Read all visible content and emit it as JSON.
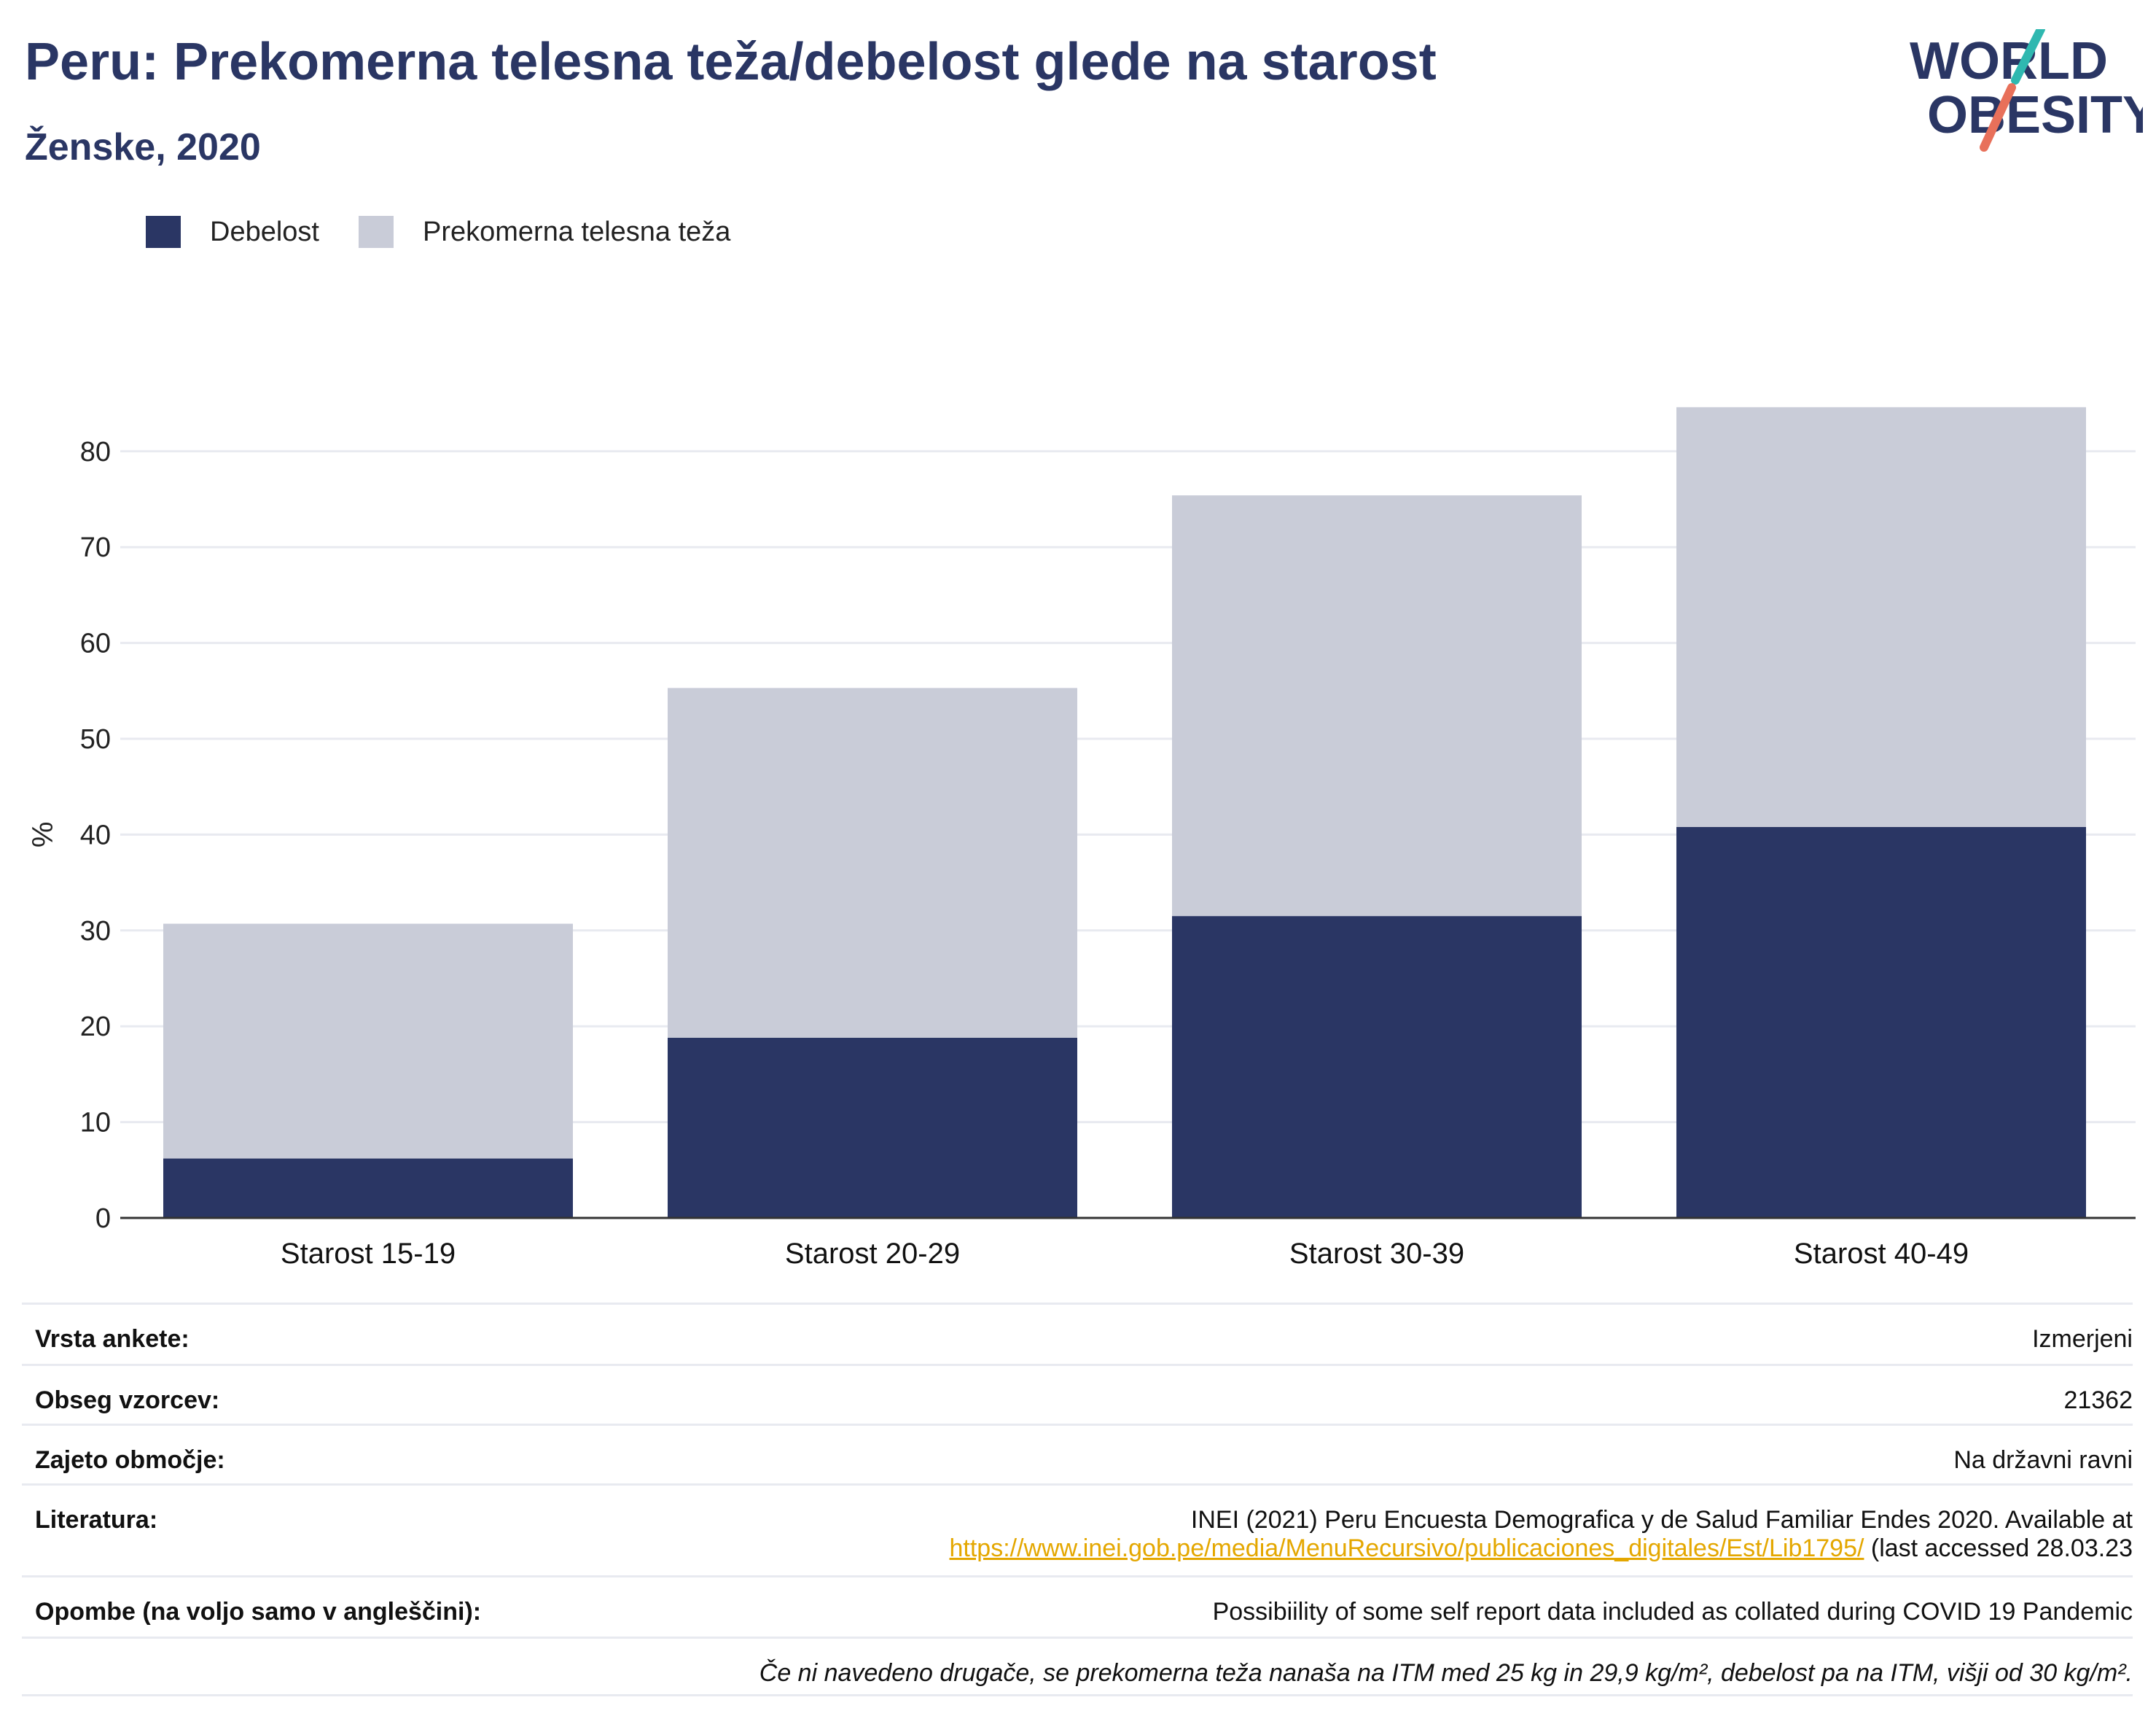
{
  "header": {
    "title": "Peru: Prekomerna telesna teža/debelost glede na starost",
    "subtitle": "Ženske, 2020"
  },
  "logo": {
    "line1": "WORLD",
    "line2": "OBESITY",
    "accent_teal": "#2fb8b0",
    "accent_coral": "#e8705a",
    "text_color": "#2a3664"
  },
  "colors": {
    "obesity": "#2a3664",
    "overweight": "#c9ccd8",
    "link": "#e4a700"
  },
  "chart_data": {
    "type": "bar",
    "stacked": true,
    "categories": [
      "Starost 15-19",
      "Starost 20-29",
      "Starost 30-39",
      "Starost 40-49"
    ],
    "series": [
      {
        "name": "Debelost",
        "values": [
          6.2,
          18.8,
          31.5,
          40.8
        ]
      },
      {
        "name": "Prekomerna telesna teža",
        "values": [
          24.5,
          36.5,
          43.9,
          43.8
        ]
      }
    ],
    "ylabel": "%",
    "ylim": [
      0,
      90
    ],
    "yticks": [
      0,
      10,
      20,
      30,
      40,
      50,
      60,
      70,
      80
    ],
    "grid": true,
    "legend_position": "top-left"
  },
  "info": {
    "survey_type_label": "Vrsta ankete:",
    "survey_type_value": "Izmerjeni",
    "sample_size_label": "Obseg vzorcev:",
    "sample_size_value": "21362",
    "area_label": "Zajeto območje:",
    "area_value": "Na državni ravni",
    "literature_label": "Literatura:",
    "literature_line1": "INEI (2021) Peru Encuesta Demografica y de Salud Familiar Endes 2020. Available at",
    "literature_link": "https://www.inei.gob.pe/media/MenuRecursivo/publicaciones_digitales/Est/Lib1795/",
    "literature_suffix": " (last accessed 28.03.23",
    "notes_label": "Opombe (na voljo samo v angleščini):",
    "notes_value": "Possibiility of some self report data included as collated during COVID 19 Pandemic",
    "footnote": "Če ni navedeno drugače, se prekomerna teža nanaša na ITM med 25 kg in 29,9 kg/m², debelost pa na ITM, višji od 30 kg/m²."
  }
}
